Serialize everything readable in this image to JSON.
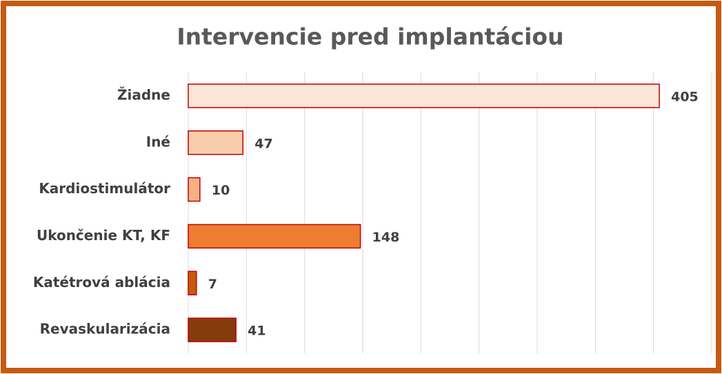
{
  "chart_data": {
    "type": "bar",
    "orientation": "horizontal",
    "title": "Intervencie pred implantáciou",
    "categories": [
      "Žiadne",
      "Iné",
      "Kardiostimulátor",
      "Ukončenie KT, KF",
      "Katétrová ablácia",
      "Revaskularizácia"
    ],
    "values": [
      405,
      47,
      10,
      148,
      7,
      41
    ],
    "colors": [
      "#fbe5d6",
      "#f8cbad",
      "#f4b183",
      "#ed7d31",
      "#c55a11",
      "#843c0c"
    ],
    "edgecolor": "#c00000",
    "xlim": [
      0,
      450
    ],
    "xticks": [
      0,
      50,
      100,
      150,
      200,
      250,
      300,
      350,
      400,
      450
    ],
    "grid": true
  }
}
